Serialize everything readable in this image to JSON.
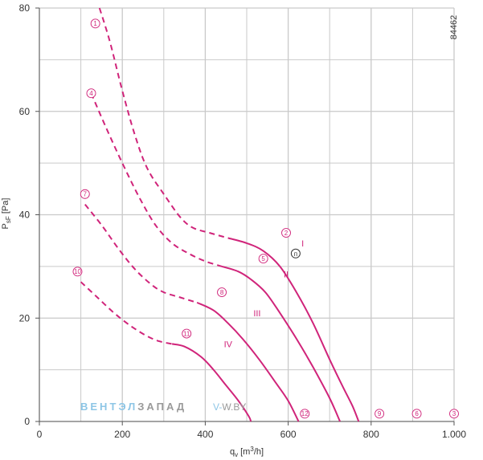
{
  "figure_id": "84462",
  "colors": {
    "curve": "#d0247a",
    "grid": "#c9c9c9",
    "axis": "#555555",
    "watermark_blue": "#8ec6e6",
    "watermark_gray": "#9a9a9a"
  },
  "watermark": {
    "part1": "ВЕНТЭЛ",
    "part2": "ЗАПАД",
    "part3": "V-",
    "part4": "W.BY"
  },
  "chart_data": {
    "type": "line",
    "title": "",
    "xlabel": "q",
    "xlabel_sub": "v",
    "xlabel_unit": "[m",
    "xlabel_sup": "3",
    "xlabel_unit_end": "/h]",
    "ylabel": "P",
    "ylabel_sub": "sF",
    "ylabel_unit": "[Pa]",
    "xlim": [
      0,
      1000
    ],
    "ylim": [
      0,
      80
    ],
    "x_ticks": [
      0,
      200,
      400,
      600,
      800,
      1000
    ],
    "x_tick_labels": [
      "0",
      "200",
      "400",
      "600",
      "800",
      "1.000"
    ],
    "x_minor_grid": [
      100,
      300,
      500,
      700,
      900
    ],
    "y_ticks": [
      0,
      20,
      40,
      60,
      80
    ],
    "y_tick_labels": [
      "0",
      "20",
      "40",
      "60",
      "80"
    ],
    "y_minor_grid": [
      10,
      30,
      50,
      70
    ],
    "grid": true,
    "series": [
      {
        "name": "I",
        "dashed": [
          [
            145,
            80
          ],
          [
            170,
            73.5
          ],
          [
            200,
            64
          ],
          [
            230,
            55.5
          ],
          [
            260,
            49
          ],
          [
            300,
            44
          ],
          [
            340,
            39.5
          ],
          [
            370,
            37.5
          ],
          [
            410,
            36.5
          ],
          [
            455,
            35.5
          ]
        ],
        "solid": [
          [
            455,
            35.5
          ],
          [
            500,
            34.5
          ],
          [
            540,
            33
          ],
          [
            580,
            30
          ],
          [
            620,
            25
          ],
          [
            660,
            19
          ],
          [
            700,
            12
          ],
          [
            730,
            7
          ],
          [
            755,
            3
          ],
          [
            770,
            0
          ]
        ]
      },
      {
        "name": "II",
        "dashed": [
          [
            125,
            63.5
          ],
          [
            160,
            57
          ],
          [
            200,
            50
          ],
          [
            240,
            43.5
          ],
          [
            280,
            38
          ],
          [
            320,
            34.5
          ],
          [
            360,
            32.5
          ],
          [
            400,
            31
          ],
          [
            440,
            30
          ]
        ],
        "solid": [
          [
            440,
            30
          ],
          [
            480,
            29
          ],
          [
            510,
            27.5
          ],
          [
            545,
            25
          ],
          [
            580,
            21
          ],
          [
            620,
            16
          ],
          [
            660,
            10.5
          ],
          [
            700,
            4.5
          ],
          [
            725,
            0
          ]
        ]
      },
      {
        "name": "III",
        "dashed": [
          [
            110,
            42
          ],
          [
            150,
            38
          ],
          [
            190,
            33.5
          ],
          [
            230,
            29.5
          ],
          [
            270,
            26.5
          ],
          [
            300,
            25
          ],
          [
            340,
            24
          ],
          [
            380,
            23
          ]
        ],
        "solid": [
          [
            380,
            23
          ],
          [
            420,
            21.5
          ],
          [
            455,
            19
          ],
          [
            490,
            16
          ],
          [
            530,
            12
          ],
          [
            570,
            7.5
          ],
          [
            600,
            4
          ],
          [
            625,
            0
          ]
        ]
      },
      {
        "name": "IV",
        "dashed": [
          [
            100,
            27
          ],
          [
            140,
            24
          ],
          [
            180,
            21
          ],
          [
            220,
            18.5
          ],
          [
            260,
            16.5
          ],
          [
            290,
            15.5
          ],
          [
            320,
            15
          ]
        ],
        "solid": [
          [
            320,
            15
          ],
          [
            350,
            14.5
          ],
          [
            390,
            12.5
          ],
          [
            420,
            10
          ],
          [
            450,
            7
          ],
          [
            480,
            4
          ],
          [
            505,
            1
          ],
          [
            510,
            0
          ]
        ]
      }
    ],
    "curve_labels": [
      {
        "text": "I",
        "x": 635,
        "y": 34.5
      },
      {
        "text": "II",
        "x": 595,
        "y": 28.5
      },
      {
        "text": "III",
        "x": 525,
        "y": 21
      },
      {
        "text": "IV",
        "x": 455,
        "y": 15
      }
    ],
    "point_markers": [
      {
        "text": "1",
        "x": 135,
        "y": 77
      },
      {
        "text": "2",
        "x": 595,
        "y": 36.5
      },
      {
        "text": "3",
        "x": 1000,
        "y": 1.5
      },
      {
        "text": "4",
        "x": 125,
        "y": 63.5
      },
      {
        "text": "5",
        "x": 540,
        "y": 31.5
      },
      {
        "text": "6",
        "x": 910,
        "y": 1.5
      },
      {
        "text": "7",
        "x": 110,
        "y": 44
      },
      {
        "text": "8",
        "x": 440,
        "y": 25
      },
      {
        "text": "9",
        "x": 820,
        "y": 1.5
      },
      {
        "text": "10",
        "x": 92,
        "y": 29
      },
      {
        "text": "11",
        "x": 355,
        "y": 17
      },
      {
        "text": "12",
        "x": 640,
        "y": 1.5
      }
    ],
    "operating_point": {
      "text": "п",
      "x": 618,
      "y": 32.5
    }
  }
}
